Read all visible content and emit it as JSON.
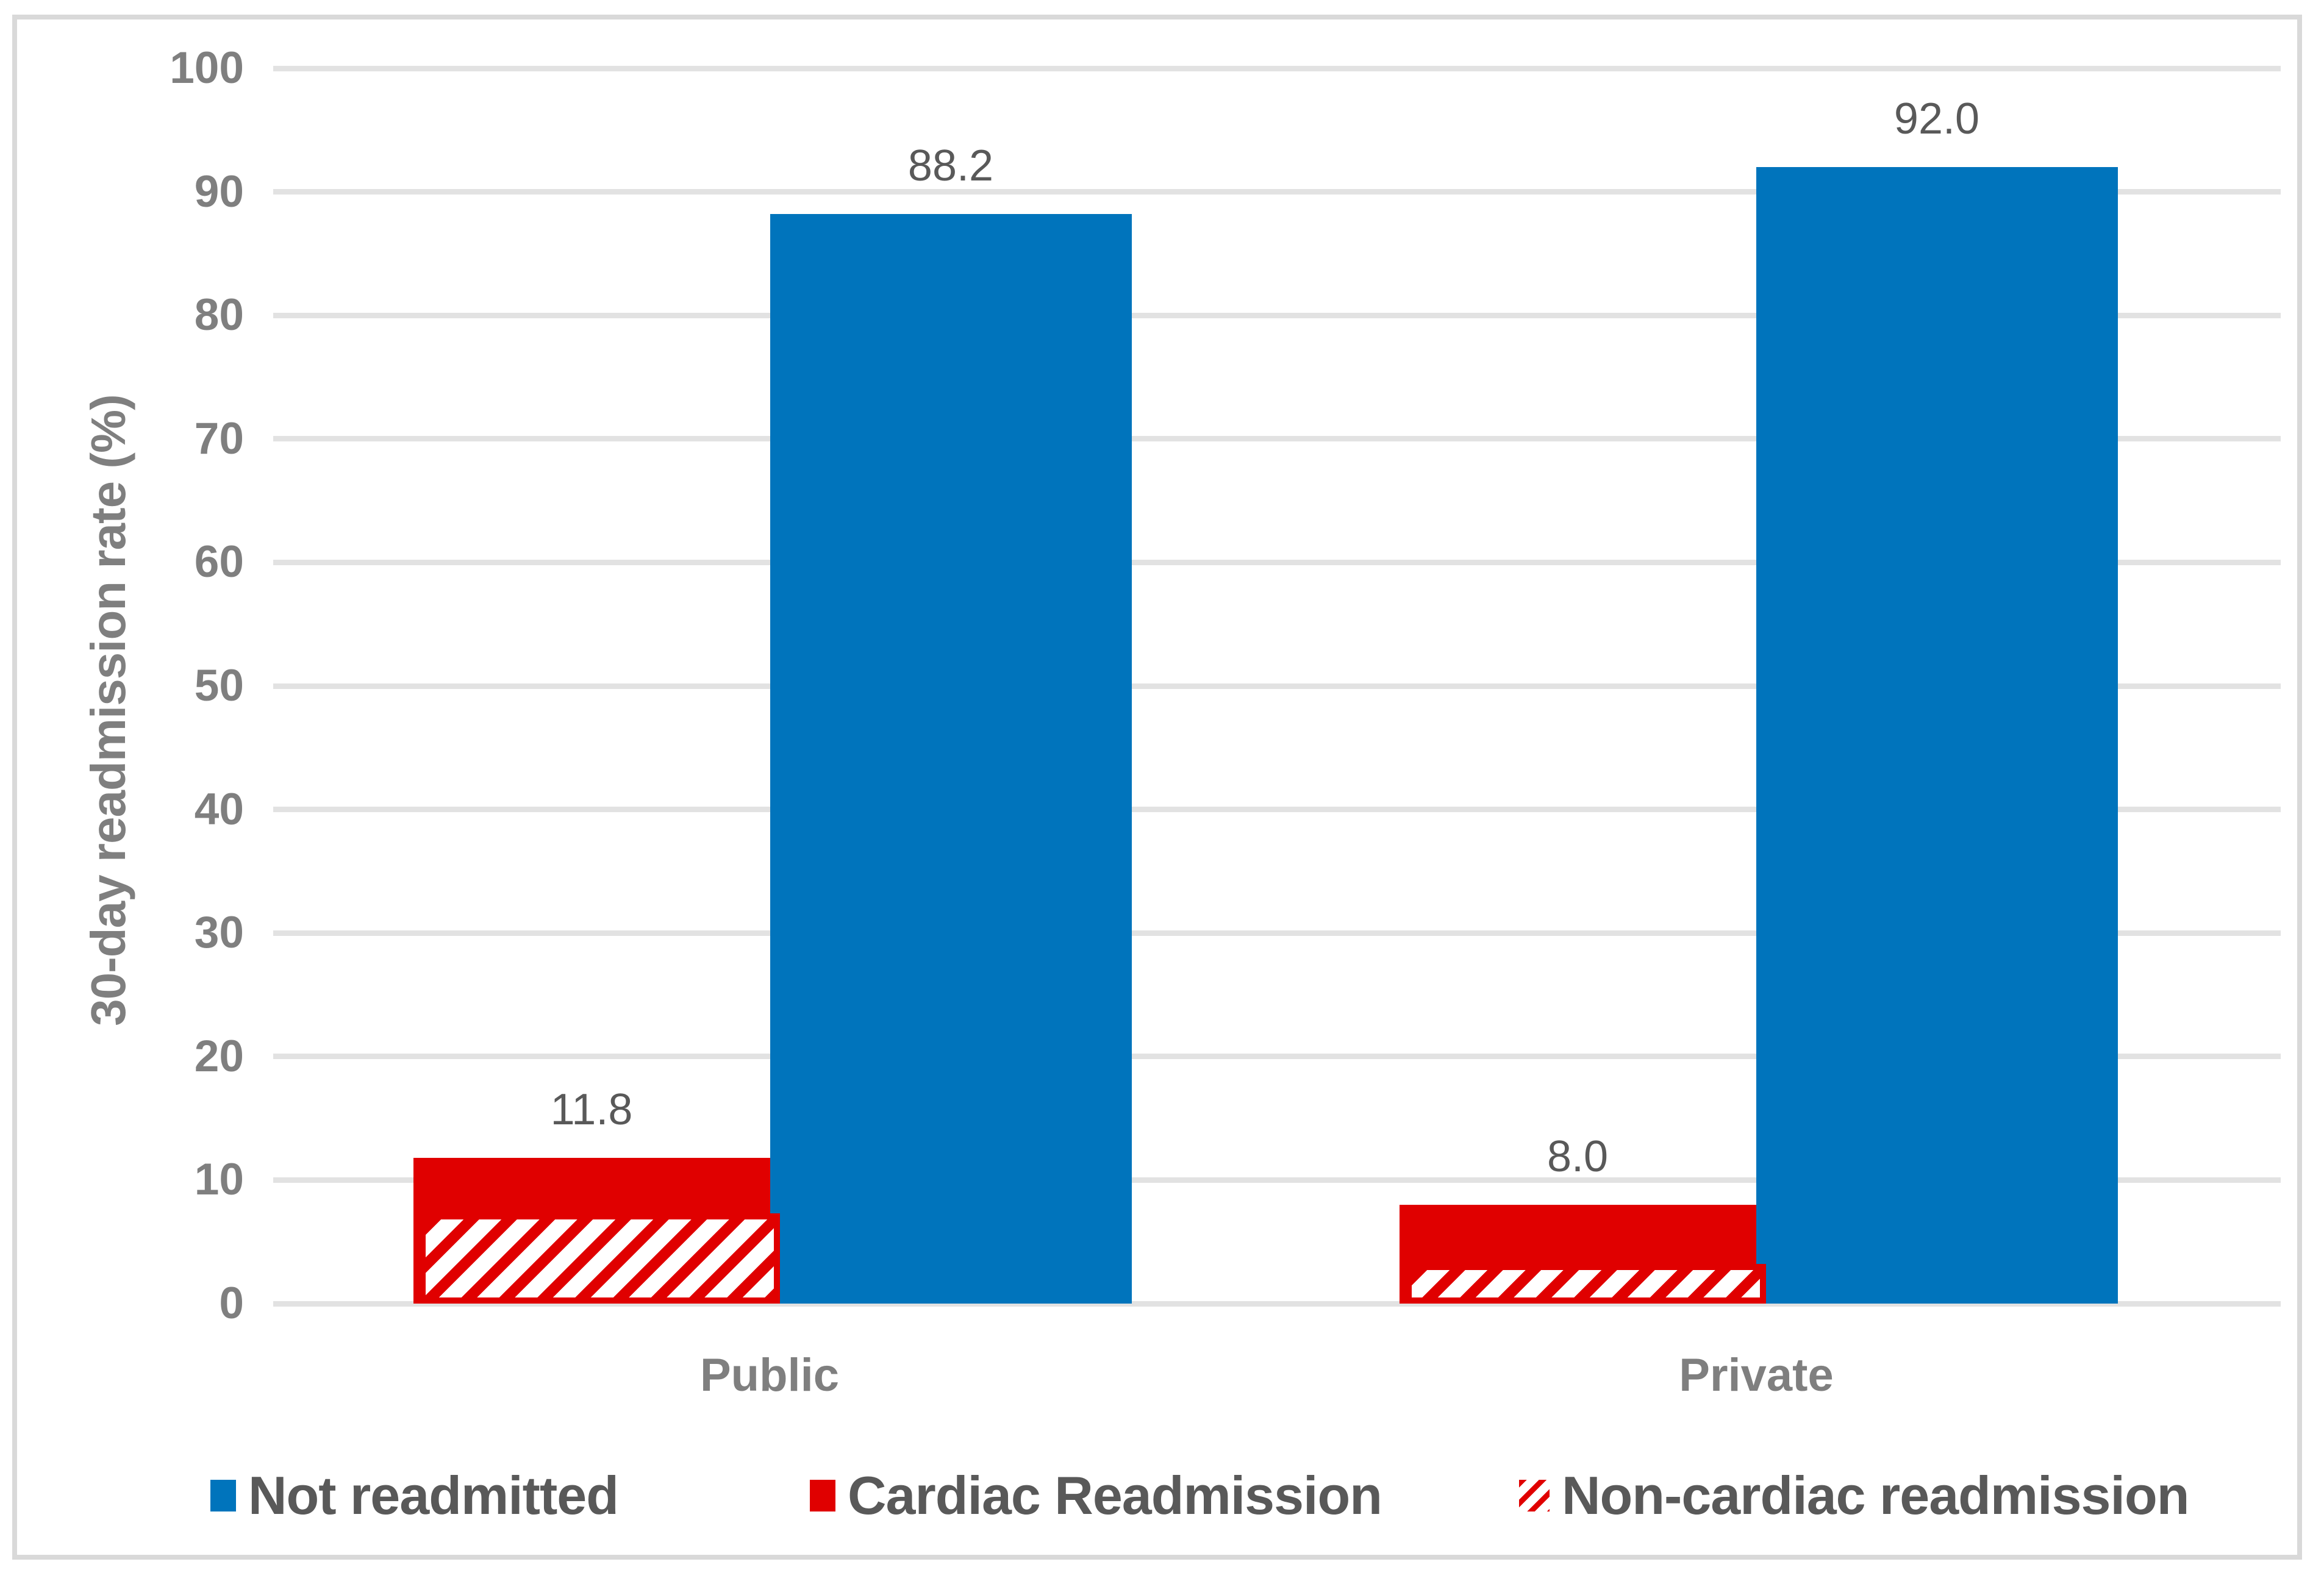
{
  "chart_data": {
    "type": "bar",
    "title": "",
    "xlabel": "",
    "ylabel": "30-day readmission rate (%)",
    "ylim": [
      0,
      100
    ],
    "ytick_labels": [
      "0",
      "10",
      "20",
      "30",
      "40",
      "50",
      "60",
      "70",
      "80",
      "90",
      "100"
    ],
    "grid": true,
    "legend_position": "bottom",
    "categories": [
      "Public",
      "Private"
    ],
    "series": [
      {
        "name": "Not readmitted",
        "color": "#0074BC",
        "pattern": "solid",
        "values": [
          88.2,
          92.0
        ],
        "data_labels": [
          "88.2",
          "92.0"
        ]
      },
      {
        "name": "Cardiac Readmission",
        "color": "#E00000",
        "pattern": "solid",
        "values": [
          11.8,
          8.0
        ],
        "data_labels": [
          "11.8",
          "8.0"
        ]
      },
      {
        "name": "Non-cardiac readmission",
        "color": "#E00000",
        "pattern": "diagonal-hatch-on-white",
        "values": [
          7.3,
          3.2
        ],
        "data_labels": [
          "",
          ""
        ]
      }
    ]
  }
}
